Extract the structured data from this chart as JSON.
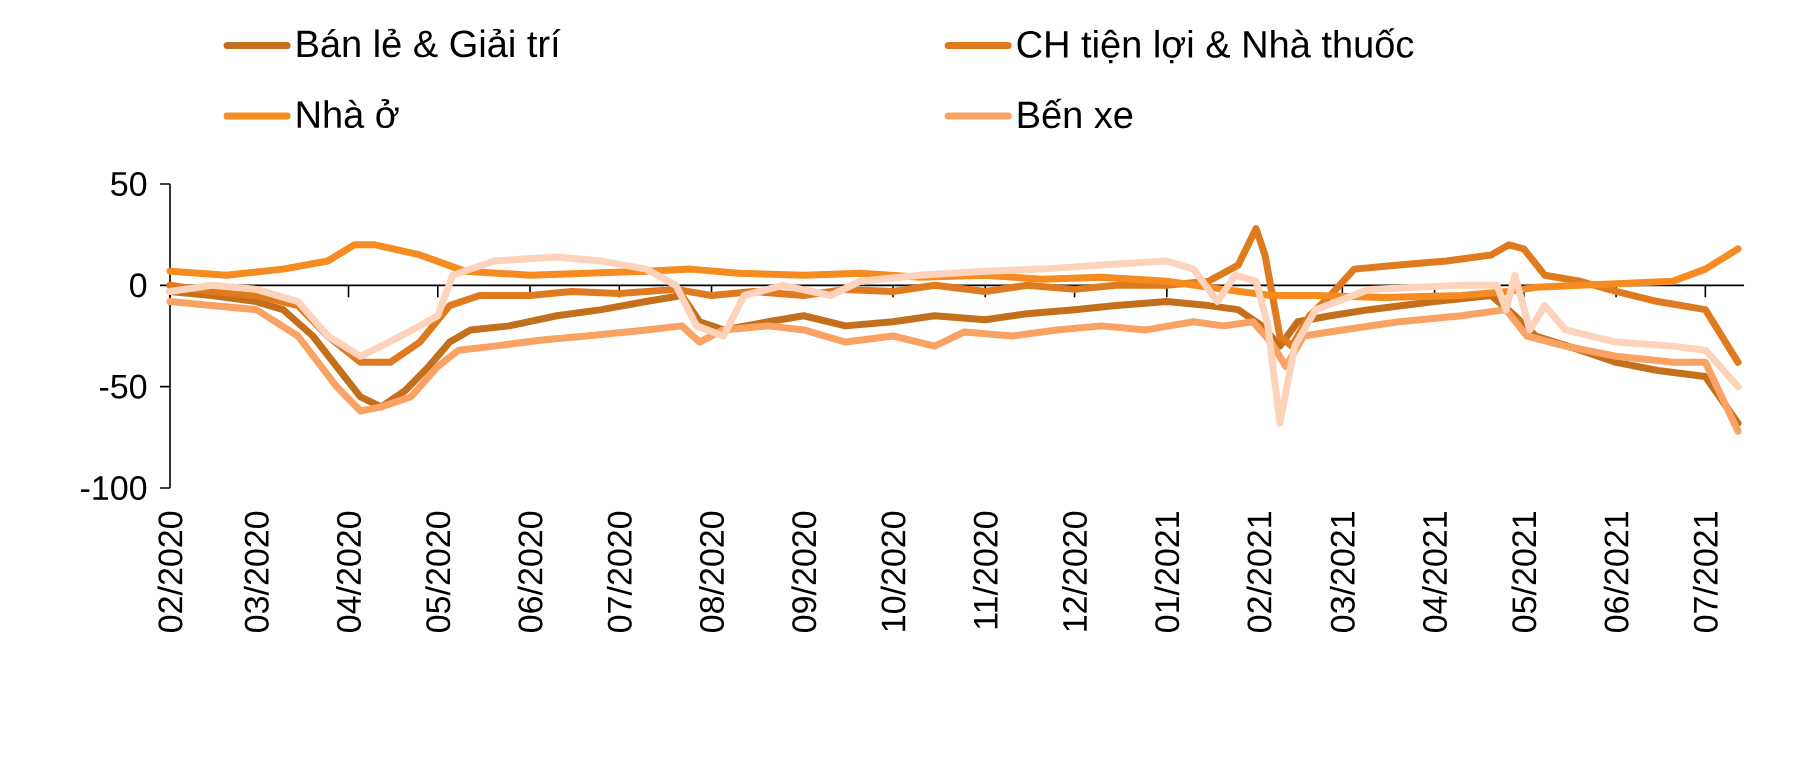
{
  "chart_data": {
    "type": "line",
    "ylim": [
      -100,
      50
    ],
    "yticks": [
      -100,
      -50,
      0,
      50
    ],
    "xlim": [
      "2020-02-01",
      "2021-07-14"
    ],
    "xticks": [
      {
        "value": "2020-02-01",
        "label": "02/2020"
      },
      {
        "value": "2020-03-01",
        "label": "03/2020"
      },
      {
        "value": "2020-04-01",
        "label": "04/2020"
      },
      {
        "value": "2020-05-01",
        "label": "05/2020"
      },
      {
        "value": "2020-06-01",
        "label": "06/2020"
      },
      {
        "value": "2020-07-01",
        "label": "07/2020"
      },
      {
        "value": "2020-08-01",
        "label": "08/2020"
      },
      {
        "value": "2020-09-01",
        "label": "09/2020"
      },
      {
        "value": "2020-10-01",
        "label": "10/2020"
      },
      {
        "value": "2020-11-01",
        "label": "11/2020"
      },
      {
        "value": "2020-12-01",
        "label": "12/2020"
      },
      {
        "value": "2021-01-01",
        "label": "01/2021"
      },
      {
        "value": "2021-02-01",
        "label": "02/2021"
      },
      {
        "value": "2021-03-01",
        "label": "03/2021"
      },
      {
        "value": "2021-04-01",
        "label": "04/2021"
      },
      {
        "value": "2021-05-01",
        "label": "05/2021"
      },
      {
        "value": "2021-06-01",
        "label": "06/2021"
      },
      {
        "value": "2021-07-01",
        "label": "07/2021"
      }
    ],
    "legend": "top",
    "series": [
      {
        "name": "Bán lẻ & Giải trí",
        "color": "#c46f1c",
        "x": [
          "2020-02-01",
          "2020-02-15",
          "2020-03-01",
          "2020-03-10",
          "2020-03-20",
          "2020-03-28",
          "2020-04-05",
          "2020-04-12",
          "2020-04-20",
          "2020-04-28",
          "2020-05-05",
          "2020-05-12",
          "2020-05-25",
          "2020-06-10",
          "2020-06-25",
          "2020-07-10",
          "2020-07-22",
          "2020-07-28",
          "2020-08-05",
          "2020-08-20",
          "2020-09-01",
          "2020-09-15",
          "2020-10-01",
          "2020-10-15",
          "2020-11-01",
          "2020-11-15",
          "2020-12-01",
          "2020-12-15",
          "2021-01-01",
          "2021-01-15",
          "2021-01-25",
          "2021-02-02",
          "2021-02-08",
          "2021-02-14",
          "2021-02-25",
          "2021-03-10",
          "2021-04-01",
          "2021-04-20",
          "2021-04-28",
          "2021-05-05",
          "2021-05-20",
          "2021-06-01",
          "2021-06-15",
          "2021-07-01",
          "2021-07-12"
        ],
        "values": [
          -3,
          -5,
          -8,
          -12,
          -25,
          -40,
          -55,
          -60,
          -52,
          -40,
          -28,
          -22,
          -20,
          -15,
          -12,
          -8,
          -5,
          -18,
          -22,
          -18,
          -15,
          -20,
          -18,
          -15,
          -17,
          -14,
          -12,
          -10,
          -8,
          -10,
          -12,
          -20,
          -30,
          -18,
          -15,
          -12,
          -8,
          -5,
          -15,
          -25,
          -32,
          -38,
          -42,
          -45,
          -68
        ]
      },
      {
        "name": "CH tiện lợi & Nhà thuốc",
        "color": "#e07a1f",
        "x": [
          "2020-02-01",
          "2020-02-15",
          "2020-03-01",
          "2020-03-15",
          "2020-03-25",
          "2020-04-05",
          "2020-04-15",
          "2020-04-25",
          "2020-05-05",
          "2020-05-15",
          "2020-06-01",
          "2020-06-15",
          "2020-07-01",
          "2020-07-20",
          "2020-08-01",
          "2020-08-15",
          "2020-09-01",
          "2020-09-15",
          "2020-10-01",
          "2020-10-15",
          "2020-11-01",
          "2020-11-15",
          "2020-12-01",
          "2020-12-15",
          "2021-01-01",
          "2021-01-15",
          "2021-01-25",
          "2021-01-31",
          "2021-02-03",
          "2021-02-08",
          "2021-02-12",
          "2021-02-18",
          "2021-02-25",
          "2021-03-05",
          "2021-03-20",
          "2021-04-05",
          "2021-04-20",
          "2021-04-26",
          "2021-05-01",
          "2021-05-08",
          "2021-05-20",
          "2021-06-01",
          "2021-06-15",
          "2021-07-01",
          "2021-07-12"
        ],
        "values": [
          0,
          -3,
          -5,
          -10,
          -25,
          -38,
          -38,
          -28,
          -10,
          -5,
          -5,
          -3,
          -4,
          -2,
          -5,
          -3,
          -5,
          -2,
          -3,
          0,
          -3,
          0,
          -2,
          0,
          0,
          2,
          10,
          28,
          15,
          -25,
          -30,
          -15,
          -5,
          8,
          10,
          12,
          15,
          20,
          18,
          5,
          2,
          -3,
          -8,
          -12,
          -38
        ]
      },
      {
        "name": "Nhà ở",
        "color": "#f68b1f",
        "x": [
          "2020-02-01",
          "2020-02-20",
          "2020-03-10",
          "2020-03-25",
          "2020-04-03",
          "2020-04-10",
          "2020-04-25",
          "2020-05-10",
          "2020-06-01",
          "2020-06-20",
          "2020-07-10",
          "2020-07-25",
          "2020-08-10",
          "2020-09-01",
          "2020-09-20",
          "2020-10-10",
          "2020-11-01",
          "2020-11-20",
          "2020-12-10",
          "2021-01-01",
          "2021-01-20",
          "2021-02-05",
          "2021-02-20",
          "2021-03-15",
          "2021-04-10",
          "2021-04-26",
          "2021-05-05",
          "2021-05-20",
          "2021-06-05",
          "2021-06-20",
          "2021-07-01",
          "2021-07-12"
        ],
        "values": [
          7,
          5,
          8,
          12,
          20,
          20,
          15,
          7,
          5,
          6,
          7,
          8,
          6,
          5,
          6,
          4,
          5,
          3,
          4,
          2,
          -2,
          -5,
          -5,
          -6,
          -5,
          -3,
          -1,
          0,
          1,
          2,
          8,
          18
        ]
      },
      {
        "name": "Bến xe",
        "color": "#f9a264",
        "x": [
          "2020-02-01",
          "2020-02-15",
          "2020-03-01",
          "2020-03-15",
          "2020-03-28",
          "2020-04-05",
          "2020-04-12",
          "2020-04-22",
          "2020-05-01",
          "2020-05-08",
          "2020-05-20",
          "2020-06-05",
          "2020-06-20",
          "2020-07-10",
          "2020-07-22",
          "2020-07-28",
          "2020-08-05",
          "2020-08-20",
          "2020-09-01",
          "2020-09-15",
          "2020-10-01",
          "2020-10-15",
          "2020-10-25",
          "2020-11-10",
          "2020-11-25",
          "2020-12-10",
          "2020-12-25",
          "2021-01-10",
          "2021-01-20",
          "2021-01-30",
          "2021-02-05",
          "2021-02-10",
          "2021-02-16",
          "2021-03-01",
          "2021-03-20",
          "2021-04-10",
          "2021-04-25",
          "2021-05-02",
          "2021-05-15",
          "2021-06-01",
          "2021-06-20",
          "2021-07-01",
          "2021-07-12"
        ],
        "values": [
          -8,
          -10,
          -12,
          -25,
          -50,
          -62,
          -60,
          -55,
          -40,
          -32,
          -30,
          -27,
          -25,
          -22,
          -20,
          -28,
          -22,
          -20,
          -22,
          -28,
          -25,
          -30,
          -23,
          -25,
          -22,
          -20,
          -22,
          -18,
          -20,
          -18,
          -28,
          -40,
          -25,
          -22,
          -18,
          -15,
          -12,
          -25,
          -30,
          -35,
          -38,
          -38,
          -72
        ]
      },
      {
        "color": "#fdd3bc",
        "x": [
          "2020-02-01",
          "2020-02-15",
          "2020-03-01",
          "2020-03-15",
          "2020-03-25",
          "2020-04-05",
          "2020-04-12",
          "2020-04-25",
          "2020-05-01",
          "2020-05-06",
          "2020-05-20",
          "2020-06-10",
          "2020-06-25",
          "2020-07-10",
          "2020-07-20",
          "2020-07-27",
          "2020-08-05",
          "2020-08-12",
          "2020-08-25",
          "2020-09-10",
          "2020-09-20",
          "2020-10-10",
          "2020-11-01",
          "2020-11-20",
          "2020-12-10",
          "2021-01-01",
          "2021-01-10",
          "2021-01-18",
          "2021-01-24",
          "2021-01-31",
          "2021-02-04",
          "2021-02-08",
          "2021-02-13",
          "2021-02-20",
          "2021-03-10",
          "2021-04-10",
          "2021-04-22",
          "2021-04-25",
          "2021-04-28",
          "2021-05-03",
          "2021-05-08",
          "2021-05-15",
          "2021-06-01",
          "2021-06-20",
          "2021-07-01",
          "2021-07-12"
        ],
        "values": [
          -3,
          0,
          -2,
          -8,
          -25,
          -35,
          -30,
          -20,
          -15,
          5,
          12,
          14,
          12,
          8,
          0,
          -20,
          -25,
          -5,
          0,
          -5,
          2,
          5,
          7,
          8,
          10,
          12,
          8,
          -8,
          5,
          2,
          -20,
          -68,
          -30,
          -12,
          -2,
          0,
          0,
          -12,
          5,
          -22,
          -10,
          -22,
          -28,
          -30,
          -32,
          -50
        ]
      }
    ]
  }
}
